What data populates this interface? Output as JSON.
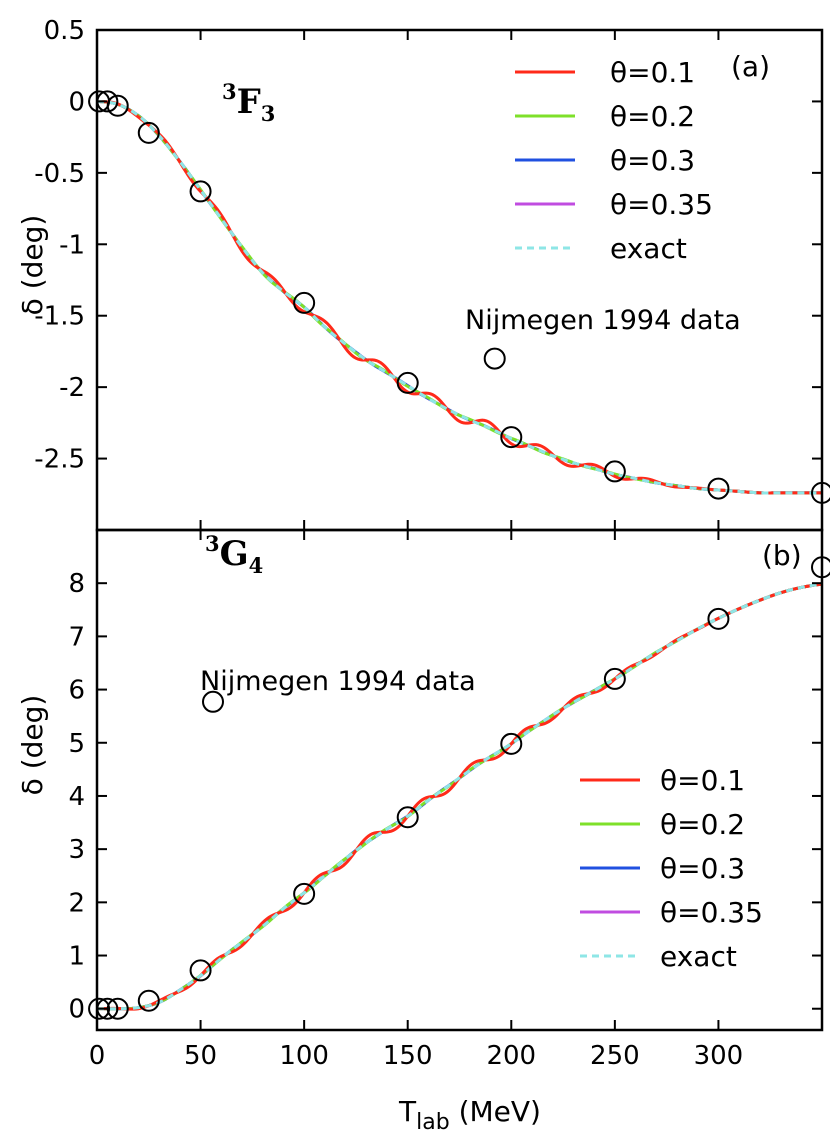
{
  "chart_data": [
    {
      "panel": "(a)",
      "type": "line",
      "title": "3F3",
      "wave": {
        "sup": "3",
        "letter": "F",
        "sub": "3"
      },
      "ylabel": "δ (deg)",
      "xlim": [
        0,
        350
      ],
      "ylim": [
        -3.0,
        0.5
      ],
      "yticks": [
        {
          "value": 0.5,
          "label": "0.5"
        },
        {
          "value": 0,
          "label": "0"
        },
        {
          "value": -0.5,
          "label": "-0.5"
        },
        {
          "value": -1,
          "label": "-1"
        },
        {
          "value": -1.5,
          "label": "-1.5"
        },
        {
          "value": -2,
          "label": "-2"
        },
        {
          "value": -2.5,
          "label": "-2.5"
        }
      ],
      "legend": [
        {
          "label": "θ=0.1",
          "color": "#ff2a1a",
          "dash": false
        },
        {
          "label": "θ=0.2",
          "color": "#7ee02a",
          "dash": false
        },
        {
          "label": "θ=0.3",
          "color": "#2050e0",
          "dash": false
        },
        {
          "label": "θ=0.35",
          "color": "#c04ce0",
          "dash": false
        },
        {
          "label": "exact",
          "color": "#8ee6e6",
          "dash": true
        }
      ],
      "legend_marker": {
        "label": "Nijmegen 1994 data",
        "x": 192,
        "y": -1.8
      },
      "exact": {
        "x": [
          0,
          10,
          20,
          30,
          40,
          50,
          60,
          70,
          80,
          90,
          100,
          110,
          120,
          130,
          140,
          150,
          160,
          170,
          180,
          190,
          200,
          210,
          220,
          230,
          240,
          250,
          260,
          270,
          280,
          290,
          300,
          310,
          320,
          330,
          340,
          350
        ],
        "y": [
          0,
          -0.02,
          -0.1,
          -0.24,
          -0.42,
          -0.62,
          -0.82,
          -1.02,
          -1.2,
          -1.33,
          -1.44,
          -1.58,
          -1.7,
          -1.81,
          -1.9,
          -1.99,
          -2.08,
          -2.16,
          -2.23,
          -2.29,
          -2.36,
          -2.42,
          -2.48,
          -2.53,
          -2.57,
          -2.61,
          -2.64,
          -2.67,
          -2.69,
          -2.71,
          -2.72,
          -2.73,
          -2.74,
          -2.74,
          -2.74,
          -2.74
        ]
      },
      "oscillation": [
        {
          "amplitude": 0.045,
          "period": 26
        },
        {
          "amplitude": 0.005,
          "period": 22
        },
        {
          "amplitude": 0.002,
          "period": 20
        },
        {
          "amplitude": 0.001,
          "period": 18
        }
      ],
      "data_points": {
        "x": [
          1,
          5,
          10,
          25,
          50,
          100,
          150,
          200,
          250,
          300,
          350
        ],
        "y": [
          0.0,
          0.0,
          -0.03,
          -0.22,
          -0.63,
          -1.41,
          -1.97,
          -2.35,
          -2.59,
          -2.71,
          -2.74
        ]
      },
      "tag": "(a)"
    },
    {
      "panel": "(b)",
      "type": "line",
      "title": "3G4",
      "wave": {
        "sup": "3",
        "letter": "G",
        "sub": "4"
      },
      "ylabel": "δ (deg)",
      "xlabel_main": "T",
      "xlabel_sub": "lab",
      "xlabel_unit": " (MeV)",
      "xlim": [
        0,
        350
      ],
      "ylim": [
        -0.4,
        9.0
      ],
      "xticks": [
        {
          "value": 0,
          "label": "0"
        },
        {
          "value": 50,
          "label": "50"
        },
        {
          "value": 100,
          "label": "100"
        },
        {
          "value": 150,
          "label": "150"
        },
        {
          "value": 200,
          "label": "200"
        },
        {
          "value": 250,
          "label": "250"
        },
        {
          "value": 300,
          "label": "300"
        }
      ],
      "yticks": [
        {
          "value": 0,
          "label": "0"
        },
        {
          "value": 1,
          "label": "1"
        },
        {
          "value": 2,
          "label": "2"
        },
        {
          "value": 3,
          "label": "3"
        },
        {
          "value": 4,
          "label": "4"
        },
        {
          "value": 5,
          "label": "5"
        },
        {
          "value": 6,
          "label": "6"
        },
        {
          "value": 7,
          "label": "7"
        },
        {
          "value": 8,
          "label": "8"
        }
      ],
      "legend": [
        {
          "label": "θ=0.1",
          "color": "#ff2a1a",
          "dash": false
        },
        {
          "label": "θ=0.2",
          "color": "#7ee02a",
          "dash": false
        },
        {
          "label": "θ=0.3",
          "color": "#2050e0",
          "dash": false
        },
        {
          "label": "θ=0.35",
          "color": "#c04ce0",
          "dash": false
        },
        {
          "label": "exact",
          "color": "#8ee6e6",
          "dash": true
        }
      ],
      "legend_marker": {
        "label": "Nijmegen 1994 data",
        "x": 56,
        "y": 5.77
      },
      "exact": {
        "x": [
          0,
          10,
          20,
          30,
          40,
          50,
          60,
          70,
          80,
          90,
          100,
          110,
          120,
          130,
          140,
          150,
          160,
          170,
          180,
          190,
          200,
          210,
          220,
          230,
          240,
          250,
          260,
          270,
          280,
          290,
          300,
          310,
          320,
          330,
          340,
          350
        ],
        "y": [
          0,
          0,
          0.02,
          0.12,
          0.35,
          0.62,
          0.95,
          1.25,
          1.55,
          1.88,
          2.18,
          2.5,
          2.82,
          3.12,
          3.38,
          3.62,
          3.92,
          4.2,
          4.48,
          4.74,
          4.98,
          5.26,
          5.52,
          5.76,
          5.98,
          6.2,
          6.45,
          6.7,
          6.92,
          7.14,
          7.34,
          7.52,
          7.68,
          7.82,
          7.92,
          7.98
        ]
      },
      "oscillation": [
        {
          "amplitude": 0.1,
          "period": 25
        },
        {
          "amplitude": 0.01,
          "period": 22
        },
        {
          "amplitude": 0.005,
          "period": 20
        },
        {
          "amplitude": 0.003,
          "period": 18
        }
      ],
      "data_points": {
        "x": [
          1,
          5,
          10,
          25,
          50,
          100,
          150,
          200,
          250,
          300,
          350
        ],
        "y": [
          0.0,
          0.0,
          0.0,
          0.15,
          0.72,
          2.16,
          3.6,
          4.98,
          6.2,
          7.33,
          8.3
        ]
      },
      "tag": "(b)"
    }
  ]
}
